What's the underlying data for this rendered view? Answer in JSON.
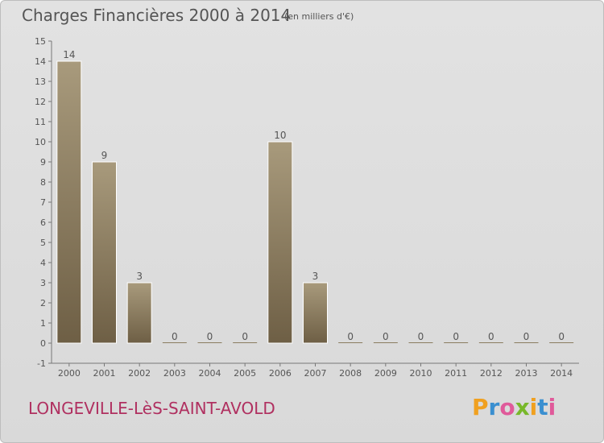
{
  "header": {
    "title": "Charges Financières 2000 à 2014",
    "unit": "(en milliers d'€)"
  },
  "footer": {
    "commune": "LONGEVILLE-LèS-SAINT-AVOLD",
    "brand_letters": [
      "P",
      "r",
      "o",
      "x",
      "i",
      "t",
      "i"
    ]
  },
  "colors": {
    "bar_light": "#a89a7c",
    "bar_dark": "#6e5f45",
    "brand": [
      "#f0a020",
      "#3a8fd0",
      "#e05a9a",
      "#78b82a",
      "#f0a020",
      "#3a8fd0",
      "#e05a9a"
    ]
  },
  "chart_data": {
    "type": "bar",
    "title": "Charges Financières 2000 à 2014",
    "subtitle": "(en milliers d'€)",
    "categories": [
      "2000",
      "2001",
      "2002",
      "2003",
      "2004",
      "2005",
      "2006",
      "2007",
      "2008",
      "2009",
      "2010",
      "2011",
      "2012",
      "2013",
      "2014"
    ],
    "values": [
      14,
      9,
      3,
      0,
      0,
      0,
      10,
      3,
      0,
      0,
      0,
      0,
      0,
      0,
      0
    ],
    "data_labels": [
      "14",
      "9",
      "3",
      "0",
      "0",
      "0",
      "10",
      "3",
      "0",
      "0",
      "0",
      "0",
      "0",
      "0",
      "0"
    ],
    "y_ticks": [
      "-1",
      "0",
      "1",
      "2",
      "3",
      "4",
      "5",
      "6",
      "7",
      "8",
      "9",
      "10",
      "11",
      "12",
      "13",
      "14",
      "15"
    ],
    "ylim": [
      -1,
      15
    ],
    "grid": false,
    "legend": "none"
  }
}
